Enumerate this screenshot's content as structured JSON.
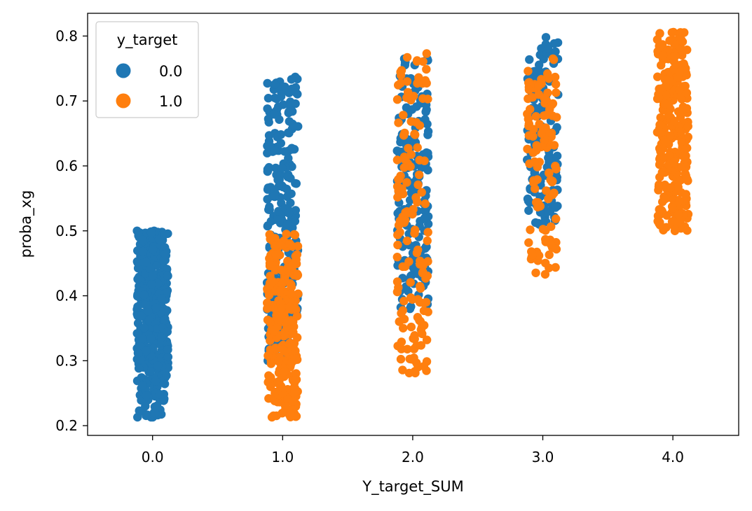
{
  "chart_data": {
    "type": "scatter",
    "subtype": "strip",
    "title": "",
    "xlabel": "Y_target_SUM",
    "ylabel": "proba_xg",
    "categories": [
      "0.0",
      "1.0",
      "2.0",
      "3.0",
      "4.0"
    ],
    "ylim": [
      0.185,
      0.835
    ],
    "yticks": [
      "0.2",
      "0.3",
      "0.4",
      "0.5",
      "0.6",
      "0.7",
      "0.8"
    ],
    "grid": false,
    "legend": {
      "title": "y_target",
      "position": "top-left",
      "entries": [
        {
          "label": "0.0",
          "color": "#1f77b4"
        },
        {
          "label": "1.0",
          "color": "#ff7f0e"
        }
      ]
    },
    "series": [
      {
        "name": "0.0",
        "color": "#1f77b4",
        "groups": [
          {
            "category": "0.0",
            "min": 0.213,
            "max": 0.5,
            "count": 420
          },
          {
            "category": "1.0",
            "min": 0.3,
            "max": 0.737,
            "count": 240
          },
          {
            "category": "2.0",
            "min": 0.38,
            "max": 0.765,
            "count": 170
          },
          {
            "category": "3.0",
            "min": 0.51,
            "max": 0.798,
            "count": 150
          },
          {
            "category": "4.0",
            "min": 0.0,
            "max": 0.0,
            "count": 0
          }
        ]
      },
      {
        "name": "1.0",
        "color": "#ff7f0e",
        "groups": [
          {
            "category": "0.0",
            "min": 0.0,
            "max": 0.0,
            "count": 0
          },
          {
            "category": "1.0",
            "min": 0.213,
            "max": 0.495,
            "count": 260
          },
          {
            "category": "2.0",
            "min": 0.281,
            "max": 0.773,
            "count": 150
          },
          {
            "category": "3.0",
            "min": 0.433,
            "max": 0.765,
            "count": 110
          },
          {
            "category": "4.0",
            "min": 0.5,
            "max": 0.806,
            "count": 300
          }
        ]
      }
    ]
  }
}
